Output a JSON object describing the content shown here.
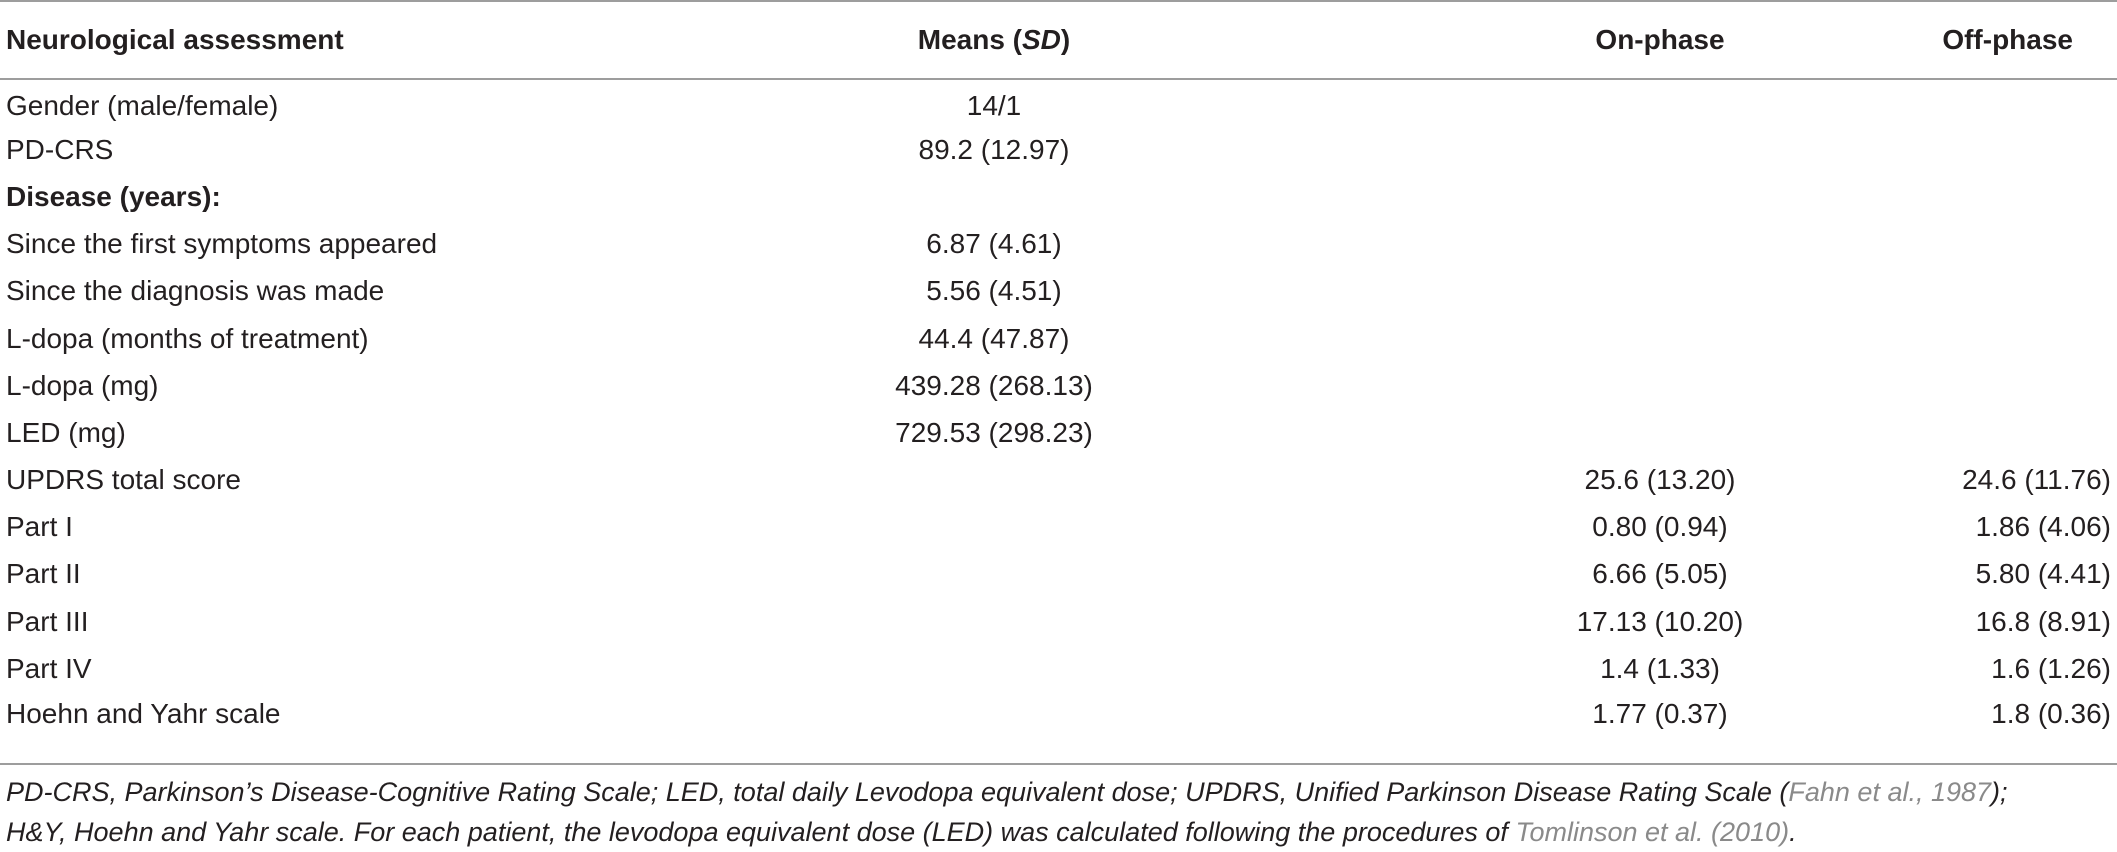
{
  "table": {
    "headers": {
      "col0": "Neurological assessment",
      "col1_prefix": "Means (",
      "col1_italic": "SD",
      "col1_suffix": ")",
      "col2": "On-phase",
      "col3": "Off-phase"
    },
    "rows": [
      {
        "label": "Gender (male/female)",
        "means": "14/1",
        "on": "",
        "off": ""
      },
      {
        "label": "PD-CRS",
        "means": "89.2 (12.97)",
        "on": "",
        "off": ""
      },
      {
        "label": "Disease (years):",
        "means": "",
        "on": "",
        "off": "",
        "bold": true
      },
      {
        "label": "Since the first symptoms appeared",
        "means": "6.87 (4.61)",
        "on": "",
        "off": ""
      },
      {
        "label": "Since the diagnosis was made",
        "means": "5.56 (4.51)",
        "on": "",
        "off": ""
      },
      {
        "label": "L-dopa (months of treatment)",
        "means": "44.4 (47.87)",
        "on": "",
        "off": ""
      },
      {
        "label": "L-dopa (mg)",
        "means": "439.28 (268.13)",
        "on": "",
        "off": ""
      },
      {
        "label": "LED (mg)",
        "means": "729.53 (298.23)",
        "on": "",
        "off": ""
      },
      {
        "label": "UPDRS total score",
        "means": "",
        "on": "25.6 (13.20)",
        "off": "24.6 (11.76)"
      },
      {
        "label": "Part I",
        "means": "",
        "on": "0.80 (0.94)",
        "off": "1.86 (4.06)"
      },
      {
        "label": "Part II",
        "means": "",
        "on": "6.66 (5.05)",
        "off": "5.80 (4.41)"
      },
      {
        "label": "Part III",
        "means": "",
        "on": "17.13 (10.20)",
        "off": "16.8 (8.91)"
      },
      {
        "label": "Part IV",
        "means": "",
        "on": "1.4 (1.33)",
        "off": "1.6 (1.26)"
      },
      {
        "label": "Hoehn and Yahr scale",
        "means": "",
        "on": "1.77 (0.37)",
        "off": "1.8 (0.36)"
      }
    ]
  },
  "footnote": {
    "part1": "PD-CRS, Parkinson’s Disease-Cognitive Rating Scale; LED, total daily Levodopa equivalent dose; UPDRS, Unified Parkinson Disease Rating Scale (",
    "cite1": "Fahn et al., 1987",
    "part2": ");",
    "part3": "H&Y, Hoehn and Yahr scale. For each patient, the levodopa equivalent dose (LED) was calculated following the procedures of ",
    "cite2": "Tomlinson et al. (2010)",
    "part4": ".",
    "cite_color": "#8a8a8a"
  }
}
